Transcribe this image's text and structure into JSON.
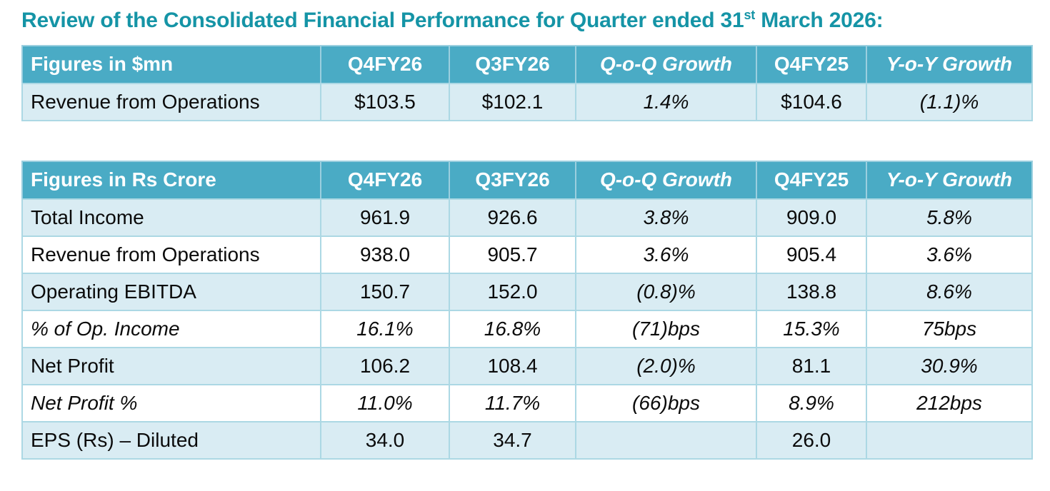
{
  "page": {
    "title": {
      "prefix": "Review of the Consolidated Financial Performance for Quarter ended 31",
      "superscript": "st",
      "suffix": " March 2026:"
    }
  },
  "colors": {
    "title_text": "#1594A6",
    "header_bg": "#4AABC5",
    "header_text": "#FFFFFF",
    "row_striped_bg": "#D9ECF3",
    "row_plain_bg": "#FFFFFF",
    "grid_border": "#ACD8E4",
    "body_text": "#0B0B0B"
  },
  "tables": [
    {
      "name": "usd-summary",
      "header": [
        "Figures in $mn",
        "Q4FY26",
        "Q3FY26",
        "Q-o-Q Growth",
        "Q4FY25",
        "Y-o-Y Growth"
      ],
      "rows": [
        {
          "italic": false,
          "cells": [
            "Revenue from Operations",
            "$103.5",
            "$102.1",
            "1.4%",
            "$104.6",
            "(1.1)%"
          ]
        }
      ]
    },
    {
      "name": "inr-detail",
      "header": [
        "Figures in Rs Crore",
        "Q4FY26",
        "Q3FY26",
        "Q-o-Q Growth",
        "Q4FY25",
        "Y-o-Y Growth"
      ],
      "rows": [
        {
          "italic": false,
          "cells": [
            "Total Income",
            "961.9",
            "926.6",
            "3.8%",
            "909.0",
            "5.8%"
          ]
        },
        {
          "italic": false,
          "cells": [
            "Revenue from Operations",
            "938.0",
            "905.7",
            "3.6%",
            "905.4",
            "3.6%"
          ]
        },
        {
          "italic": false,
          "cells": [
            "Operating EBITDA",
            "150.7",
            "152.0",
            "(0.8)%",
            "138.8",
            "8.6%"
          ]
        },
        {
          "italic": true,
          "cells": [
            "% of Op. Income",
            "16.1%",
            "16.8%",
            "(71)bps",
            "15.3%",
            "75bps"
          ]
        },
        {
          "italic": false,
          "cells": [
            "Net Profit",
            "106.2",
            "108.4",
            "(2.0)%",
            "81.1",
            "30.9%"
          ]
        },
        {
          "italic": true,
          "cells": [
            "Net Profit %",
            "11.0%",
            "11.7%",
            "(66)bps",
            "8.9%",
            "212bps"
          ]
        },
        {
          "italic": false,
          "cells": [
            "EPS (Rs) – Diluted",
            "34.0",
            "34.7",
            "",
            "26.0",
            ""
          ]
        }
      ]
    }
  ]
}
